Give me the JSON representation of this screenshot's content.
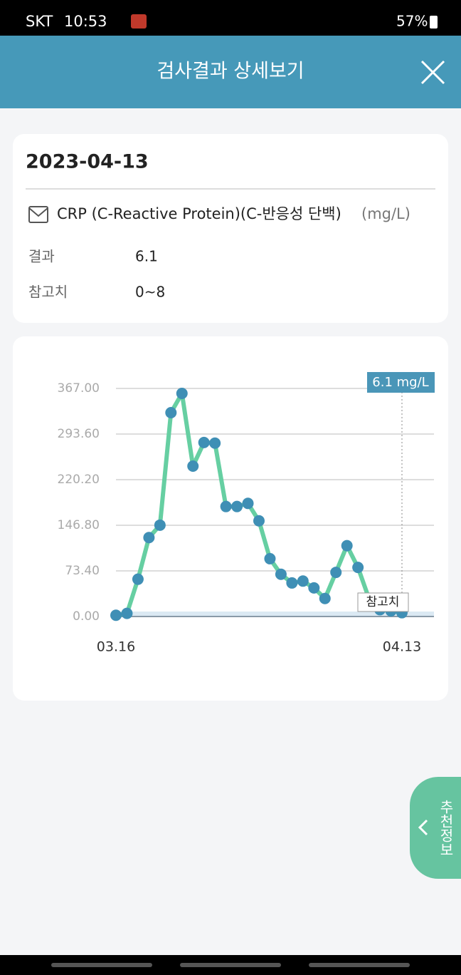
{
  "status_bar": {
    "carrier": "SKT",
    "time": "10:53",
    "battery": "57%"
  },
  "header": {
    "title": "검사결과 상세보기"
  },
  "result": {
    "date": "2023-04-13",
    "test_name": "CRP (C-Reactive Protein)(C-반응성 단백)",
    "unit": "(mg/L)",
    "rows": [
      [
        "결과",
        "6.1"
      ],
      [
        "참고치",
        "0~8"
      ]
    ]
  },
  "chart_data": {
    "type": "line",
    "categories": [
      "03.16",
      null,
      null,
      null,
      null,
      null,
      null,
      null,
      null,
      null,
      null,
      null,
      null,
      null,
      null,
      null,
      null,
      null,
      null,
      null,
      null,
      null,
      null,
      null,
      null,
      null,
      "04.13"
    ],
    "values": [
      2,
      5,
      60,
      127,
      147,
      328,
      359,
      242,
      280,
      279,
      177,
      177,
      182,
      154,
      93,
      68,
      54,
      57,
      46,
      29,
      71,
      114,
      79,
      29,
      11,
      9,
      6.1
    ],
    "color": "#66cfa2",
    "marker_color": "#3f8fb5",
    "ylim": [
      0,
      367
    ],
    "yticks": [
      {
        "value": 0,
        "label": "0.00"
      },
      {
        "value": 73.4,
        "label": "73.40"
      },
      {
        "value": 146.8,
        "label": "146.80"
      },
      {
        "value": 220.2,
        "label": "220.20"
      },
      {
        "value": 293.6,
        "label": "293.60"
      },
      {
        "value": 367,
        "label": "367.00"
      }
    ],
    "grid": true,
    "latest_label": "6.1 mg/L",
    "reference_label": "참고치",
    "reference_range": [
      0,
      8
    ]
  },
  "side_button": {
    "label": "추천정보"
  }
}
